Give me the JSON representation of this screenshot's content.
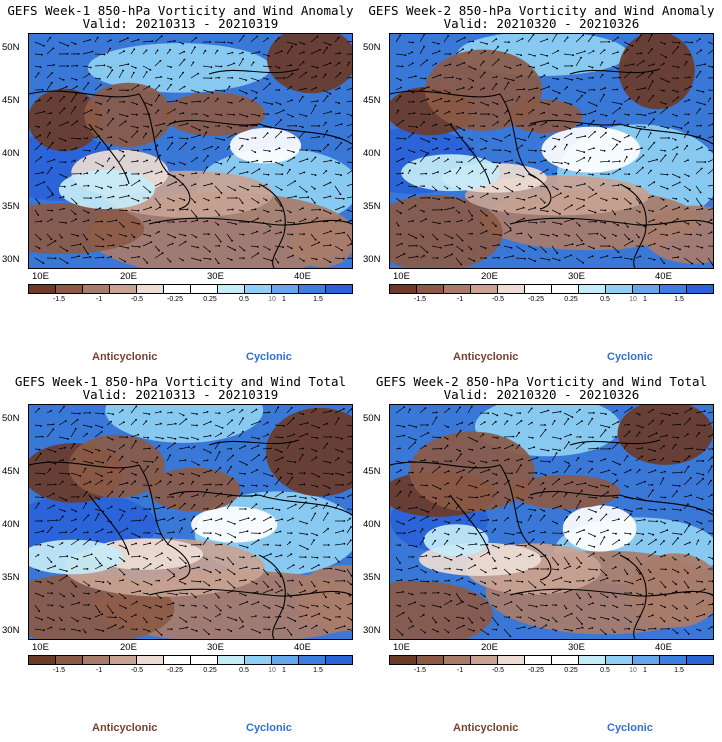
{
  "panels": [
    {
      "title1": "GEFS Week-1 850-hPa Vorticity and Wind Anomaly",
      "title2": "Valid: 20210313 - 20210319",
      "variant": 0
    },
    {
      "title1": "GEFS Week-2 850-hPa Vorticity and Wind Anomaly",
      "title2": "Valid: 20210320 - 20210326",
      "variant": 1
    },
    {
      "title1": "GEFS Week-1 850-hPa Vorticity and Wind Total",
      "title2": "Valid: 20210313 - 20210319",
      "variant": 2
    },
    {
      "title1": "GEFS Week-2 850-hPa Vorticity and Wind Total",
      "title2": "Valid: 20210320 - 20210326",
      "variant": 3
    }
  ],
  "lat_labels": [
    "50N",
    "45N",
    "40N",
    "35N",
    "30N"
  ],
  "lon_labels": [
    "10E",
    "20E",
    "30E",
    "40E"
  ],
  "colorbar": {
    "colors": [
      "#6b3b28",
      "#8b5a47",
      "#a87c6a",
      "#c8a394",
      "#ecdcd4",
      "#ffffff",
      "#ffffff",
      "#c6ecf8",
      "#8fd0f4",
      "#66a7ec",
      "#3c7fe0",
      "#2a62d8"
    ],
    "labels": [
      "-1.5",
      "-1",
      "-0.5",
      "-0.25",
      "0.25",
      "0.5",
      "1",
      "1.5"
    ],
    "scale_mark": "10"
  },
  "legend": {
    "anticyclonic": "Anticyclonic",
    "cyclonic": "Cyclonic"
  }
}
